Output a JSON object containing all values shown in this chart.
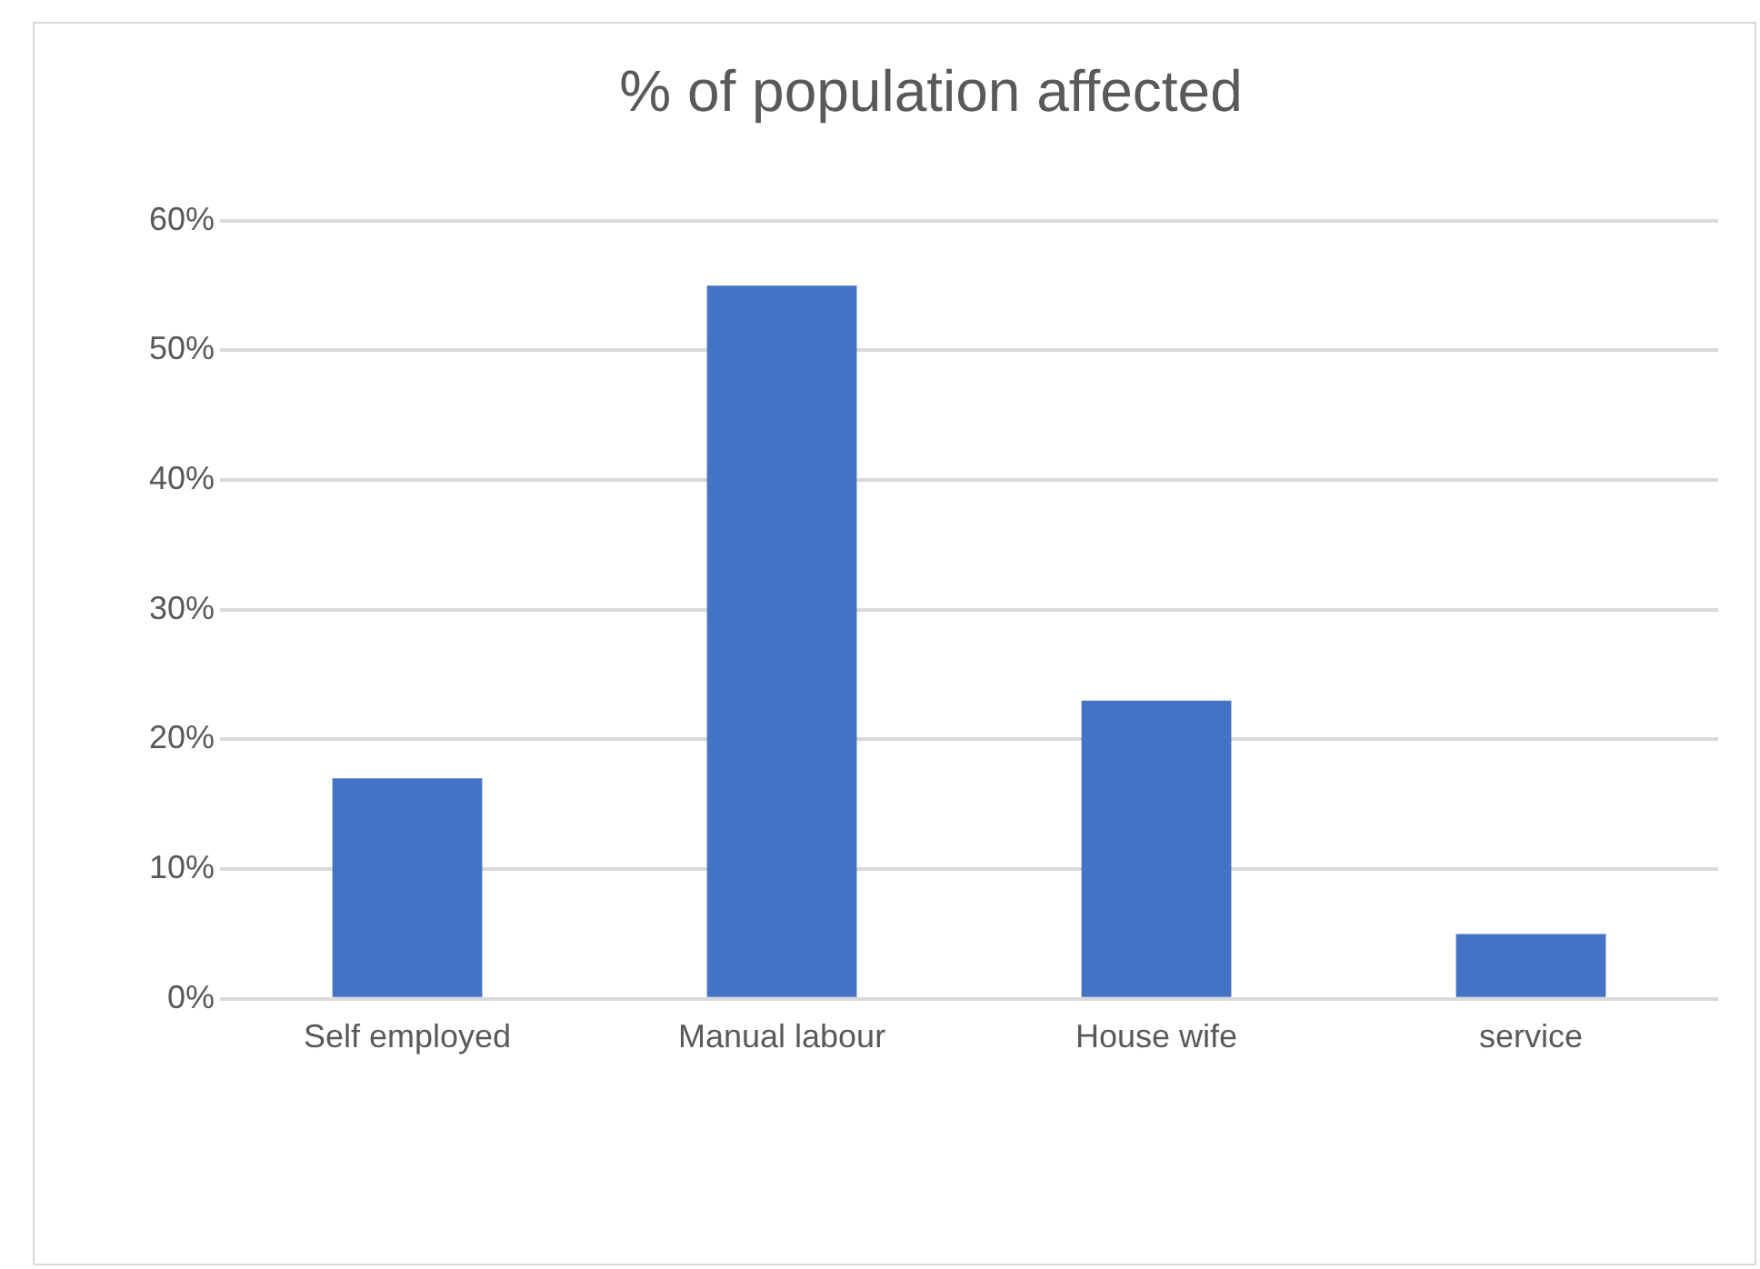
{
  "chart_data": {
    "type": "bar",
    "title": "% of population affected",
    "categories": [
      "Self employed",
      "Manual labour",
      "House wife",
      "service"
    ],
    "values": [
      17,
      55,
      23,
      5
    ],
    "color": "#4472c4",
    "ylim": [
      0,
      60
    ],
    "yticks": [
      {
        "value": 0,
        "label": "0%"
      },
      {
        "value": 10,
        "label": "10%"
      },
      {
        "value": 20,
        "label": "20%"
      },
      {
        "value": 30,
        "label": "30%"
      },
      {
        "value": 40,
        "label": "40%"
      },
      {
        "value": 50,
        "label": "50%"
      },
      {
        "value": 60,
        "label": "60%"
      }
    ],
    "grid": "y",
    "legend": false
  }
}
